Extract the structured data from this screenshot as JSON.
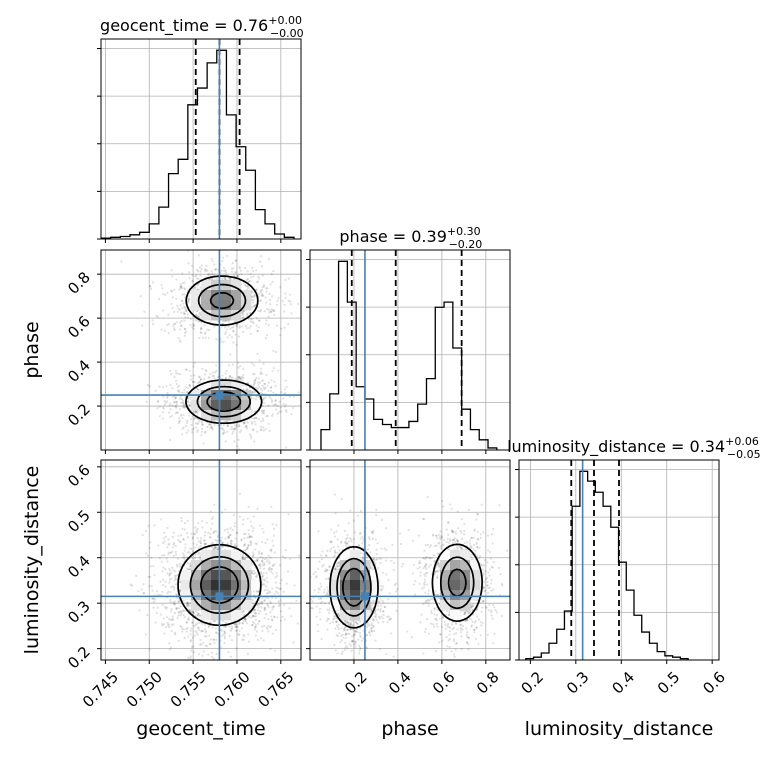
{
  "chart_data": {
    "type": "corner",
    "parameters": [
      "geocent_time",
      "phase",
      "luminosity_distance"
    ],
    "axis_labels": {
      "geocent_time": "geocent_time",
      "phase": "phase",
      "luminosity_distance": "luminosity_distance"
    },
    "truth": {
      "geocent_time": 0.758,
      "phase": 0.25,
      "luminosity_distance": 0.315
    },
    "colors": {
      "truth": "#4682b4",
      "hist": "#000000",
      "grid": "#b0b0b0"
    },
    "grid": true,
    "ranges": {
      "geocent_time": [
        0.7445,
        0.7673
      ],
      "phase": [
        0.0,
        0.91
      ],
      "luminosity_distance": [
        0.175,
        0.615
      ]
    },
    "ticks": {
      "geocent_time": {
        "values": [
          0.745,
          0.75,
          0.755,
          0.76,
          0.765
        ],
        "labels": [
          "0.745",
          "0.750",
          "0.755",
          "0.760",
          "0.765"
        ]
      },
      "phase": {
        "values": [
          0.2,
          0.4,
          0.6,
          0.8
        ],
        "labels": [
          "0.2",
          "0.4",
          "0.6",
          "0.8"
        ]
      },
      "luminosity_distance": {
        "values": [
          0.2,
          0.3,
          0.4,
          0.5,
          0.6
        ],
        "labels": [
          "0.2",
          "0.3",
          "0.4",
          "0.5",
          "0.6"
        ]
      }
    },
    "diagonal": [
      {
        "param": "geocent_time",
        "title": "geocent_time = 0.76",
        "title_plus": "+0.00",
        "title_minus": "−0.00",
        "median": 0.758,
        "quantiles": [
          0.7553,
          0.758,
          0.7603
        ],
        "bin_edges": [
          0.7445,
          0.7456,
          0.7467,
          0.7478,
          0.7489,
          0.75,
          0.7511,
          0.7522,
          0.7533,
          0.7544,
          0.7555,
          0.7566,
          0.7577,
          0.7588,
          0.7599,
          0.761,
          0.7621,
          0.7632,
          0.7643,
          0.7654,
          0.7665
        ],
        "counts": [
          1,
          2,
          3,
          5,
          8,
          18,
          38,
          78,
          95,
          160,
          180,
          210,
          225,
          148,
          110,
          82,
          35,
          18,
          6,
          2
        ]
      },
      {
        "param": "phase",
        "title": "phase = 0.39",
        "title_plus": "+0.30",
        "title_minus": "−0.20",
        "median": 0.39,
        "quantiles": [
          0.19,
          0.39,
          0.69
        ],
        "bin_edges": [
          0.05,
          0.09,
          0.13,
          0.17,
          0.21,
          0.25,
          0.29,
          0.33,
          0.37,
          0.41,
          0.45,
          0.49,
          0.53,
          0.57,
          0.61,
          0.65,
          0.69,
          0.73,
          0.77,
          0.81,
          0.85
        ],
        "counts": [
          20,
          55,
          185,
          145,
          62,
          50,
          30,
          25,
          22,
          22,
          28,
          45,
          70,
          140,
          145,
          100,
          40,
          20,
          10,
          2
        ]
      },
      {
        "param": "luminosity_distance",
        "title": "luminosity_distance = 0.34",
        "title_plus": "+0.06",
        "title_minus": "−0.05",
        "median": 0.34,
        "quantiles": [
          0.29,
          0.34,
          0.395
        ],
        "bin_edges": [
          0.19,
          0.207,
          0.224,
          0.241,
          0.258,
          0.275,
          0.292,
          0.309,
          0.326,
          0.343,
          0.36,
          0.377,
          0.394,
          0.411,
          0.428,
          0.445,
          0.462,
          0.479,
          0.496,
          0.513,
          0.53,
          0.547
        ],
        "counts": [
          1,
          2,
          5,
          12,
          22,
          35,
          110,
          135,
          128,
          120,
          110,
          95,
          70,
          50,
          32,
          20,
          12,
          6,
          3,
          2,
          1
        ]
      }
    ],
    "pairs": [
      {
        "x": "geocent_time",
        "y": "phase",
        "modes": [
          {
            "center": [
              0.7583,
              0.68
            ],
            "spread": [
              0.0022,
              0.06
            ],
            "weight": 0.45
          },
          {
            "center": [
              0.7585,
              0.22
            ],
            "spread": [
              0.0022,
              0.05
            ],
            "weight": 0.55
          }
        ],
        "contour_levels": [
          0.9,
          0.65,
          0.35
        ]
      },
      {
        "x": "geocent_time",
        "y": "luminosity_distance",
        "modes": [
          {
            "center": [
              0.758,
              0.34
            ],
            "spread": [
              0.0024,
              0.045
            ],
            "weight": 1.0
          }
        ],
        "contour_levels": [
          0.9,
          0.65,
          0.35
        ]
      },
      {
        "x": "phase",
        "y": "luminosity_distance",
        "modes": [
          {
            "center": [
              0.2,
              0.335
            ],
            "spread": [
              0.055,
              0.045
            ],
            "weight": 0.55
          },
          {
            "center": [
              0.67,
              0.345
            ],
            "spread": [
              0.06,
              0.045
            ],
            "weight": 0.45
          }
        ],
        "contour_levels": [
          0.9,
          0.65,
          0.35
        ]
      }
    ]
  }
}
